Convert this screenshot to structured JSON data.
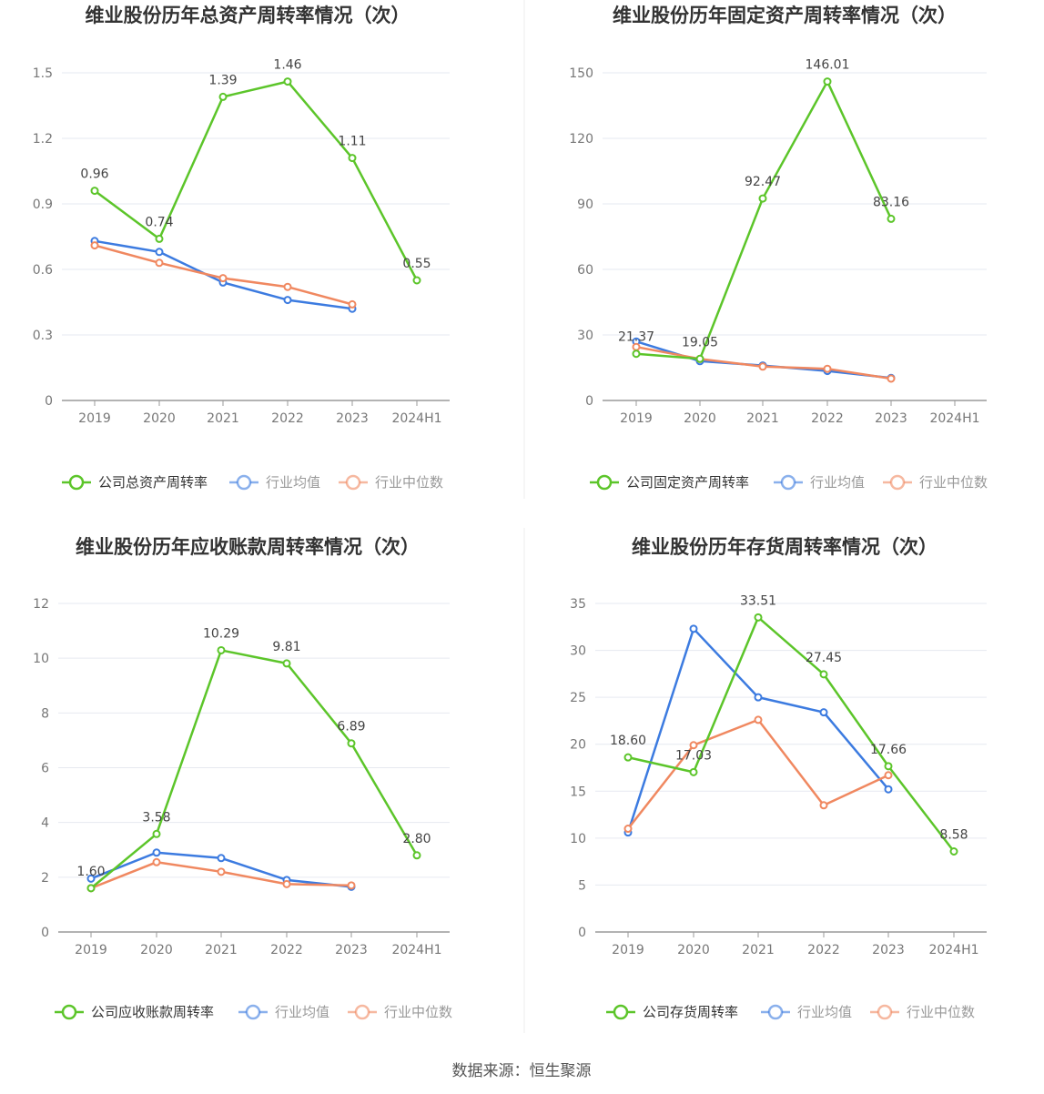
{
  "source": "数据来源：恒生聚源",
  "colors": {
    "company": "#5CC52A",
    "industry_avg": "#3C7BE0",
    "industry_median": "#F08860",
    "grid": "#E6E9F0",
    "axis": "#9A9A9A"
  },
  "chart_data": [
    {
      "type": "line",
      "title": "维业股份历年总资产周转率情况（次）",
      "categories": [
        "2019",
        "2020",
        "2021",
        "2022",
        "2023",
        "2024H1"
      ],
      "ylim": [
        0,
        1.5
      ],
      "yticks": [
        "0",
        "0.3",
        "0.6",
        "0.9",
        "1.2",
        "1.5"
      ],
      "grid": true,
      "legend_position": "bottom",
      "series": [
        {
          "name": "公司总资产周转率",
          "role": "company",
          "values": [
            0.96,
            0.74,
            1.39,
            1.46,
            1.11,
            0.55
          ],
          "labels": [
            "0.96",
            "0.74",
            "1.39",
            "1.46",
            "1.11",
            "0.55"
          ]
        },
        {
          "name": "行业均值",
          "role": "industry_avg",
          "values": [
            0.73,
            0.68,
            0.54,
            0.46,
            0.42,
            null
          ]
        },
        {
          "name": "行业中位数",
          "role": "industry_median",
          "values": [
            0.71,
            0.63,
            0.56,
            0.52,
            0.44,
            null
          ]
        }
      ]
    },
    {
      "type": "line",
      "title": "维业股份历年固定资产周转率情况（次）",
      "categories": [
        "2019",
        "2020",
        "2021",
        "2022",
        "2023",
        "2024H1"
      ],
      "ylim": [
        0,
        150
      ],
      "yticks": [
        "0",
        "30",
        "60",
        "90",
        "120",
        "150"
      ],
      "grid": true,
      "legend_position": "bottom",
      "series": [
        {
          "name": "公司固定资产周转率",
          "role": "company",
          "values": [
            21.37,
            19.05,
            92.47,
            146.01,
            83.16,
            null
          ],
          "labels": [
            "21.37",
            "19.05",
            "92.47",
            "146.01",
            "83.16",
            ""
          ]
        },
        {
          "name": "行业均值",
          "role": "industry_avg",
          "values": [
            27.0,
            18.0,
            16.0,
            13.5,
            10.3,
            null
          ]
        },
        {
          "name": "行业中位数",
          "role": "industry_median",
          "values": [
            24.5,
            19.0,
            15.5,
            14.5,
            10.0,
            null
          ]
        }
      ]
    },
    {
      "type": "line",
      "title": "维业股份历年应收账款周转率情况（次）",
      "categories": [
        "2019",
        "2020",
        "2021",
        "2022",
        "2023",
        "2024H1"
      ],
      "ylim": [
        0,
        12
      ],
      "yticks": [
        "0",
        "2",
        "4",
        "6",
        "8",
        "10",
        "12"
      ],
      "grid": true,
      "legend_position": "bottom",
      "series": [
        {
          "name": "公司应收账款周转率",
          "role": "company",
          "values": [
            1.6,
            3.58,
            10.29,
            9.81,
            6.89,
            2.8
          ],
          "labels": [
            "1.60",
            "3.58",
            "10.29",
            "9.81",
            "6.89",
            "2.80"
          ]
        },
        {
          "name": "行业均值",
          "role": "industry_avg",
          "values": [
            1.95,
            2.9,
            2.7,
            1.9,
            1.65,
            null
          ]
        },
        {
          "name": "行业中位数",
          "role": "industry_median",
          "values": [
            1.6,
            2.55,
            2.2,
            1.75,
            1.7,
            null
          ]
        }
      ]
    },
    {
      "type": "line",
      "title": "维业股份历年存货周转率情况（次）",
      "categories": [
        "2019",
        "2020",
        "2021",
        "2022",
        "2023",
        "2024H1"
      ],
      "ylim": [
        0,
        35
      ],
      "yticks": [
        "0",
        "5",
        "10",
        "15",
        "20",
        "25",
        "30",
        "35"
      ],
      "grid": true,
      "legend_position": "bottom",
      "series": [
        {
          "name": "公司存货周转率",
          "role": "company",
          "values": [
            18.6,
            17.03,
            33.51,
            27.45,
            17.66,
            8.58
          ],
          "labels": [
            "18.60",
            "17.03",
            "33.51",
            "27.45",
            "17.66",
            "8.58"
          ]
        },
        {
          "name": "行业均值",
          "role": "industry_avg",
          "values": [
            10.6,
            32.3,
            25.0,
            23.4,
            15.2,
            null
          ]
        },
        {
          "name": "行业中位数",
          "role": "industry_median",
          "values": [
            11.0,
            19.9,
            22.6,
            13.5,
            16.7,
            null
          ]
        }
      ]
    }
  ]
}
